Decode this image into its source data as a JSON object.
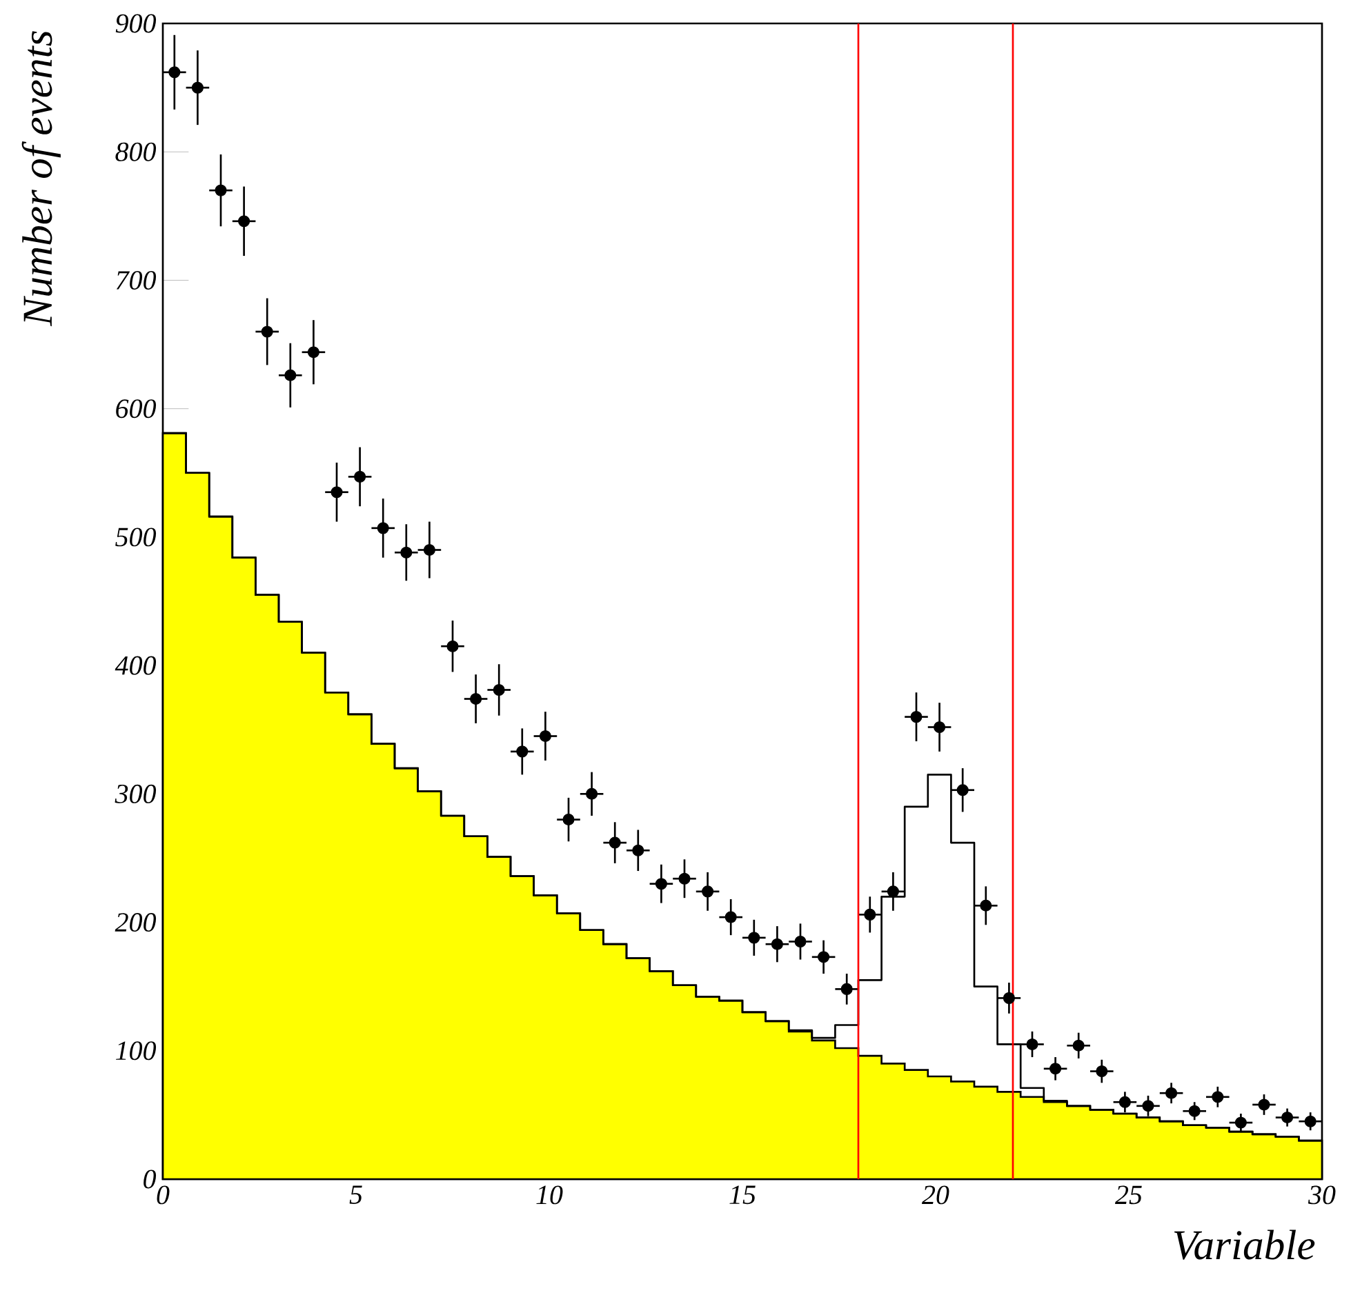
{
  "chart_data": {
    "type": "histogram",
    "xlabel": "Variable",
    "ylabel": "Number of events",
    "bins": [
      0,
      0.6,
      1.2,
      1.8,
      2.4,
      3.0,
      3.6,
      4.2,
      4.8,
      5.4,
      6.0,
      6.6,
      7.2,
      7.8,
      8.4,
      9.0,
      9.6,
      10.2,
      10.8,
      11.4,
      12.0,
      12.6,
      13.2,
      13.8,
      14.4,
      15.0,
      15.6,
      16.2,
      16.8,
      17.4,
      18.0,
      18.6,
      19.2,
      19.8,
      20.4,
      21.0,
      21.6,
      22.2,
      22.8,
      23.4,
      24.0,
      24.6,
      25.2,
      25.8,
      26.4,
      27.0,
      27.6,
      28.2,
      28.8,
      29.4,
      30
    ],
    "series": [
      {
        "color": "#ffff00",
        "values": [
          581,
          550,
          516,
          484,
          455,
          434,
          410,
          379,
          362,
          339,
          320,
          302,
          283,
          267,
          251,
          236,
          221,
          207,
          194,
          183,
          172,
          162,
          151,
          142,
          139,
          130,
          123,
          115,
          108,
          102,
          96,
          90,
          85,
          80,
          76,
          72,
          68,
          64,
          60,
          57,
          54,
          51,
          48,
          45,
          42,
          40,
          37,
          35,
          33,
          30
        ]
      },
      {
        "type": "step",
        "color": "#000000",
        "marker": "none",
        "x": [
          0,
          0.6,
          1.2,
          1.8,
          2.4,
          3.0,
          3.6,
          4.2,
          4.8,
          5.4,
          6.0,
          6.6,
          7.2,
          7.8,
          8.4,
          9.0,
          9.6,
          10.2,
          10.8,
          11.4,
          12.0,
          12.6,
          13.2,
          13.8,
          14.4,
          15.0,
          15.6,
          16.2,
          16.8,
          17.4,
          18.0,
          18.6,
          19.2,
          19.8,
          20.4,
          21.0,
          21.6,
          22.2,
          22.8,
          23.4,
          24.0,
          24.6,
          25.2,
          25.8,
          26.4,
          27.0,
          27.6,
          28.2,
          28.8,
          29.4,
          30
        ],
        "values": [
          581,
          550,
          516,
          484,
          455,
          434,
          410,
          379,
          362,
          339,
          320,
          302,
          283,
          267,
          251,
          236,
          221,
          207,
          194,
          183,
          172,
          162,
          151,
          142,
          139,
          130,
          123,
          116,
          110,
          120,
          155,
          220,
          290,
          315,
          262,
          150,
          105,
          71,
          61,
          57,
          54,
          51,
          48,
          45,
          42,
          40,
          37,
          35,
          33,
          30,
          30
        ]
      },
      {
        "type": "scatter",
        "color": "#000000",
        "marker": "circle",
        "x": [
          0.3,
          0.9,
          1.5,
          2.1,
          2.7,
          3.3,
          3.9,
          4.5,
          5.1,
          5.7,
          6.3,
          6.9,
          7.5,
          8.1,
          8.7,
          9.3,
          9.9,
          10.5,
          11.1,
          11.7,
          12.3,
          12.9,
          13.5,
          14.1,
          14.7,
          15.3,
          15.9,
          16.5,
          17.1,
          17.7,
          18.3,
          18.9,
          19.5,
          20.1,
          20.7,
          21.3,
          21.9,
          22.5,
          23.1,
          23.7,
          24.3,
          24.9,
          25.5,
          26.1,
          26.7,
          27.3,
          27.9,
          28.5,
          29.1,
          29.7
        ],
        "values": [
          862,
          850,
          770,
          746,
          660,
          626,
          644,
          535,
          547,
          507,
          488,
          490,
          415,
          374,
          381,
          333,
          345,
          280,
          300,
          262,
          256,
          230,
          234,
          224,
          204,
          188,
          183,
          185,
          173,
          148,
          206,
          224,
          360,
          352,
          303,
          213,
          141,
          105,
          86,
          104,
          84,
          60,
          57,
          67,
          53,
          64,
          44,
          58,
          48,
          45
        ],
        "errors": [
          29,
          29,
          28,
          27,
          26,
          25,
          25,
          23,
          23,
          23,
          22,
          22,
          20,
          19,
          20,
          18,
          19,
          17,
          17,
          16,
          16,
          15,
          15,
          15,
          14,
          14,
          14,
          14,
          13,
          12,
          14,
          15,
          19,
          19,
          17,
          15,
          12,
          10,
          9,
          10,
          9,
          8,
          8,
          8,
          7,
          8,
          7,
          8,
          7,
          7
        ],
        "xerrors": [
          0.3,
          0.3,
          0.3,
          0.3,
          0.3,
          0.3,
          0.3,
          0.3,
          0.3,
          0.3,
          0.3,
          0.3,
          0.3,
          0.3,
          0.3,
          0.3,
          0.3,
          0.3,
          0.3,
          0.3,
          0.3,
          0.3,
          0.3,
          0.3,
          0.3,
          0.3,
          0.3,
          0.3,
          0.3,
          0.3,
          0.3,
          0.3,
          0.3,
          0.3,
          0.3,
          0.3,
          0.3,
          0.3,
          0.3,
          0.3,
          0.3,
          0.3,
          0.3,
          0.3,
          0.3,
          0.3,
          0.3,
          0.3,
          0.3,
          0.3
        ]
      }
    ],
    "ref_lines": [
      {
        "axis": "x",
        "value": 18,
        "color": "#ff0000"
      },
      {
        "axis": "x",
        "value": 22,
        "color": "#ff0000"
      }
    ],
    "xlim": [
      0,
      30
    ],
    "ylim": [
      0,
      900
    ],
    "xticks": [
      0,
      5,
      10,
      15,
      20,
      25,
      30
    ],
    "yticks": [
      0,
      100,
      200,
      300,
      400,
      500,
      600,
      700,
      800,
      900
    ],
    "grid": false
  }
}
